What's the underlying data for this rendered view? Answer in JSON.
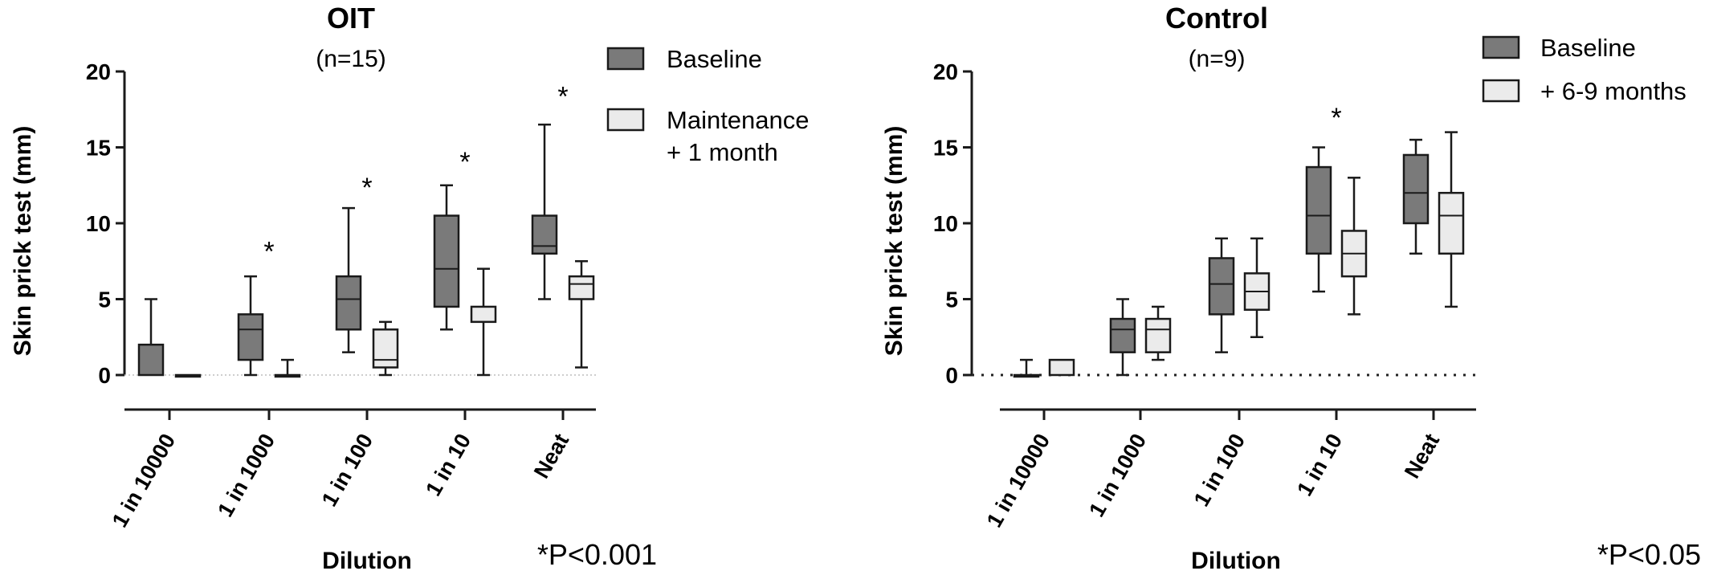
{
  "colors": {
    "baseline": "#7a7a7a",
    "followup": "#ebebeb",
    "stroke": "#1a1a1a"
  },
  "chart_data": [
    {
      "type": "box",
      "title": "OIT",
      "subtitle": "(n=15)",
      "xlabel": "Dilution",
      "ylabel": "Skin prick test (mm)",
      "ylim": [
        0,
        20
      ],
      "yticks": [
        0,
        5,
        10,
        15,
        20
      ],
      "categories": [
        "1 in 10000",
        "1 in 1000",
        "1 in 100",
        "1 in 10",
        "Neat"
      ],
      "zero_line": "dotted-light",
      "series": [
        {
          "name": "Baseline",
          "legend": [
            "Baseline"
          ],
          "color_key": "baseline",
          "boxes": [
            {
              "min": 0,
              "q1": 0,
              "median": 0,
              "q3": 2,
              "max": 5
            },
            {
              "min": 0,
              "q1": 1,
              "median": 3,
              "q3": 4,
              "max": 6.5
            },
            {
              "min": 1.5,
              "q1": 3,
              "median": 5,
              "q3": 6.5,
              "max": 11
            },
            {
              "min": 3,
              "q1": 4.5,
              "median": 7,
              "q3": 10.5,
              "max": 12.5
            },
            {
              "min": 5,
              "q1": 8,
              "median": 8.5,
              "q3": 10.5,
              "max": 16.5
            }
          ]
        },
        {
          "name": "Maintenance + 1 month",
          "legend": [
            "Maintenance",
            "+ 1 month"
          ],
          "color_key": "followup",
          "boxes": [
            {
              "min": 0,
              "q1": 0,
              "median": 0,
              "q3": 0,
              "max": 0
            },
            {
              "min": 0,
              "q1": 0,
              "median": 0,
              "q3": 0,
              "max": 1
            },
            {
              "min": 0,
              "q1": 0.5,
              "median": 1,
              "q3": 3,
              "max": 3.5
            },
            {
              "min": 0,
              "q1": 3.5,
              "median": 3.5,
              "q3": 4.5,
              "max": 7
            },
            {
              "min": 0.5,
              "q1": 5,
              "median": 6,
              "q3": 6.5,
              "max": 7.5
            }
          ]
        }
      ],
      "annotations": [
        {
          "category": "1 in 1000",
          "text": "*",
          "y": 8.5
        },
        {
          "category": "1 in 100",
          "text": "*",
          "y": 12.7
        },
        {
          "category": "1 in 10",
          "text": "*",
          "y": 14.4
        },
        {
          "category": "Neat",
          "text": "*",
          "y": 18.7
        }
      ],
      "footnote": "*P<0.001"
    },
    {
      "type": "box",
      "title": "Control",
      "subtitle": "(n=9)",
      "xlabel": "Dilution",
      "ylabel": "Skin prick test (mm)",
      "ylim": [
        0,
        20
      ],
      "yticks": [
        0,
        5,
        10,
        15,
        20
      ],
      "categories": [
        "1 in 10000",
        "1 in 1000",
        "1 in 100",
        "1 in 10",
        "Neat"
      ],
      "zero_line": "dotted-dark",
      "series": [
        {
          "name": "Baseline",
          "legend": [
            "Baseline"
          ],
          "color_key": "baseline",
          "boxes": [
            {
              "min": 0,
              "q1": 0,
              "median": 0,
              "q3": 0,
              "max": 1
            },
            {
              "min": 0,
              "q1": 1.5,
              "median": 3,
              "q3": 3.7,
              "max": 5
            },
            {
              "min": 1.5,
              "q1": 4,
              "median": 6,
              "q3": 7.7,
              "max": 9
            },
            {
              "min": 5.5,
              "q1": 8,
              "median": 10.5,
              "q3": 13.7,
              "max": 15
            },
            {
              "min": 8,
              "q1": 10,
              "median": 12,
              "q3": 14.5,
              "max": 15.5
            }
          ]
        },
        {
          "name": "+ 6-9 months",
          "legend": [
            "+ 6-9 months"
          ],
          "color_key": "followup",
          "boxes": [
            {
              "min": 0,
              "q1": 0,
              "median": 0,
              "q3": 1,
              "max": 1
            },
            {
              "min": 1,
              "q1": 1.5,
              "median": 3,
              "q3": 3.7,
              "max": 4.5
            },
            {
              "min": 2.5,
              "q1": 4.3,
              "median": 5.5,
              "q3": 6.7,
              "max": 9
            },
            {
              "min": 4,
              "q1": 6.5,
              "median": 8,
              "q3": 9.5,
              "max": 13
            },
            {
              "min": 4.5,
              "q1": 8,
              "median": 10.5,
              "q3": 12,
              "max": 16
            }
          ]
        }
      ],
      "annotations": [
        {
          "category": "1 in 10",
          "text": "*",
          "y": 17.3
        }
      ],
      "footnote": "*P<0.05"
    }
  ]
}
